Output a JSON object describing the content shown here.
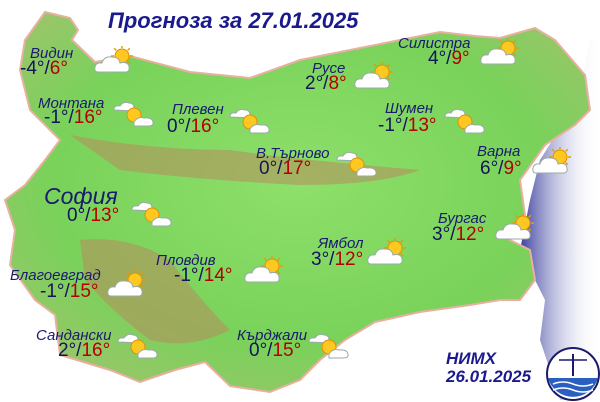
{
  "title": "Прогноза за 27.01.2025",
  "colors": {
    "title": "#1a1a8c",
    "min_temp": "#14145a",
    "max_temp": "#b30000",
    "land": "#7fd85a",
    "sea": "#4a4fa8"
  },
  "cities": [
    {
      "name": "Видин",
      "min": "-4°",
      "max": "6°",
      "icon": "sun-behind-cloud-icon"
    },
    {
      "name": "Монтана",
      "min": "-1°",
      "max": "16°",
      "icon": "partly-cloudy-icon"
    },
    {
      "name": "Плевен",
      "min": "0°",
      "max": "16°",
      "icon": "partly-cloudy-icon"
    },
    {
      "name": "Русе",
      "min": "2°",
      "max": "8°",
      "icon": "sun-behind-cloud-icon"
    },
    {
      "name": "Силистра",
      "min": "4°",
      "max": "9°",
      "icon": "sun-behind-cloud-icon"
    },
    {
      "name": "Шумен",
      "min": "-1°",
      "max": "13°",
      "icon": "partly-cloudy-icon"
    },
    {
      "name": "В.Търново",
      "min": "0°",
      "max": "17°",
      "icon": "partly-cloudy-icon"
    },
    {
      "name": "Варна",
      "min": "6°",
      "max": "9°",
      "icon": "sun-behind-cloud-icon"
    },
    {
      "name": "София",
      "min": "0°",
      "max": "13°",
      "icon": "partly-cloudy-icon"
    },
    {
      "name": "Бургас",
      "min": "3°",
      "max": "12°",
      "icon": "sun-behind-cloud-icon"
    },
    {
      "name": "Ямбол",
      "min": "3°",
      "max": "12°",
      "icon": "sun-behind-cloud-icon"
    },
    {
      "name": "Пловдив",
      "min": "-1°",
      "max": "14°",
      "icon": "sun-behind-cloud-icon"
    },
    {
      "name": "Благоевград",
      "min": "-1°",
      "max": "15°",
      "icon": "sun-behind-cloud-icon"
    },
    {
      "name": "Сандански",
      "min": "2°",
      "max": "16°",
      "icon": "partly-cloudy-icon"
    },
    {
      "name": "Кърджали",
      "min": "0°",
      "max": "15°",
      "icon": "partly-cloudy-icon"
    }
  ],
  "footer": {
    "org": "НИМХ",
    "issued": "26.01.2025"
  }
}
